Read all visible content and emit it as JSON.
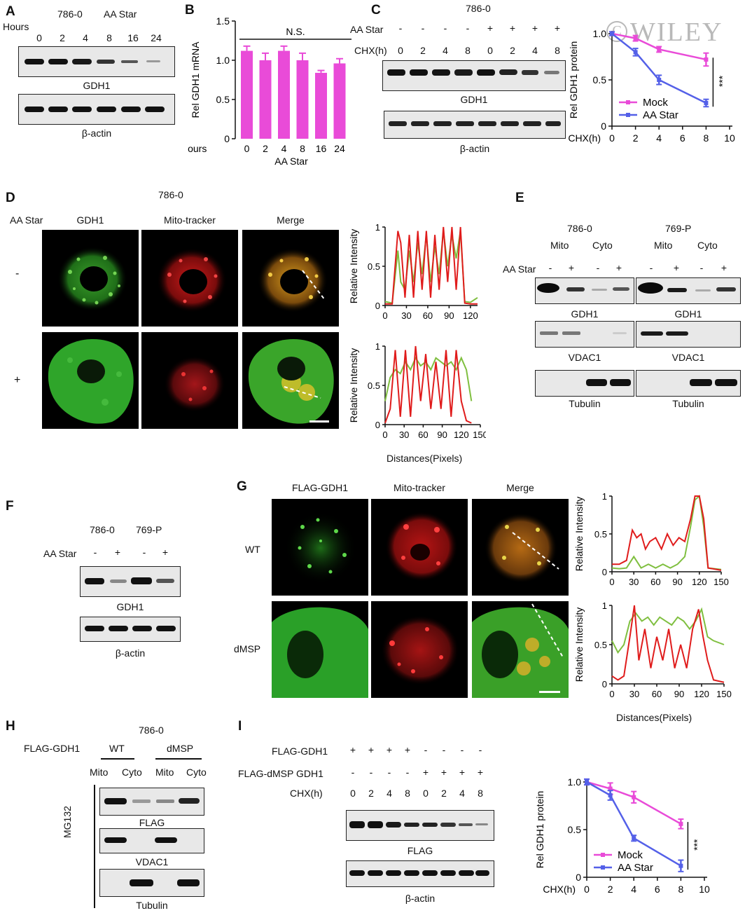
{
  "watermark": "WILEY",
  "panels": {
    "A": {
      "letter": "A",
      "cell": "786-0",
      "treatment": "AA Star",
      "hours_label": "Hours",
      "hours": [
        "0",
        "2",
        "4",
        "8",
        "16",
        "24"
      ],
      "blot1": "GDH1",
      "blot2": "β-actin"
    },
    "B": {
      "letter": "B",
      "ns": "N.S.",
      "xlabel": "AA Star",
      "x_prefix": "Hours"
    },
    "C": {
      "letter": "C",
      "cell": "786-0",
      "aa_label": "AA Star",
      "chx_label": "CHX(h)",
      "aa_signs": [
        "-",
        "-",
        "-",
        "-",
        "+",
        "+",
        "+",
        "+"
      ],
      "chx": [
        "0",
        "2",
        "4",
        "8",
        "0",
        "2",
        "4",
        "8"
      ],
      "blot1": "GDH1",
      "blot2": "β-actin",
      "sig": "***"
    },
    "D": {
      "letter": "D",
      "cell": "786-0",
      "aa_label": "AA Star",
      "cols": [
        "GDH1",
        "Mito-tracker",
        "Merge"
      ],
      "rows": [
        "-",
        "+"
      ],
      "ylabel": "Relative Intensity",
      "xlabel": "Distances(Pixels)"
    },
    "E": {
      "letter": "E",
      "cells": [
        "786-0",
        "769-P"
      ],
      "fractions": [
        "Mito",
        "Cyto",
        "Mito",
        "Cyto"
      ],
      "aa_label": "AA Star",
      "signs": [
        "-",
        "+",
        "-",
        "+",
        "-",
        "+",
        "-",
        "+"
      ],
      "blots": [
        "GDH1",
        "VDAC1",
        "Tubulin"
      ]
    },
    "F": {
      "letter": "F",
      "cells": [
        "786-0",
        "769-P"
      ],
      "aa_label": "AA Star",
      "signs": [
        "-",
        "+",
        "-",
        "+"
      ],
      "blot1": "GDH1",
      "blot2": "β-actin"
    },
    "G": {
      "letter": "G",
      "cols": [
        "FLAG-GDH1",
        "Mito-tracker",
        "Merge"
      ],
      "rows": [
        "WT",
        "dMSP"
      ],
      "ylabel": "Relative Intensity",
      "xlabel": "Distances(Pixels)"
    },
    "H": {
      "letter": "H",
      "cell": "786-0",
      "flag_label": "FLAG-GDH1",
      "groups": [
        "WT",
        "dMSP"
      ],
      "fractions": [
        "Mito",
        "Cyto",
        "Mito",
        "Cyto"
      ],
      "side": "MG132",
      "blots": [
        "FLAG",
        "VDAC1",
        "Tubulin"
      ]
    },
    "I": {
      "letter": "I",
      "row1_label": "FLAG-GDH1",
      "row2_label": "FLAG-dMSP GDH1",
      "chx_label": "CHX(h)",
      "row1_signs": [
        "+",
        "+",
        "+",
        "+",
        "-",
        "-",
        "-",
        "-"
      ],
      "row2_signs": [
        "-",
        "-",
        "-",
        "-",
        "+",
        "+",
        "+",
        "+"
      ],
      "chx": [
        "0",
        "2",
        "4",
        "8",
        "0",
        "2",
        "4",
        "8"
      ],
      "blot1": "FLAG",
      "blot2": "β-actin",
      "sig": "***"
    }
  },
  "chart_data": [
    {
      "id": "B",
      "type": "bar",
      "categories": [
        "0",
        "2",
        "4",
        "8",
        "16",
        "24"
      ],
      "values": [
        1.12,
        1.0,
        1.12,
        1.0,
        0.84,
        0.96
      ],
      "errors": [
        0.06,
        0.09,
        0.06,
        0.09,
        0.03,
        0.06
      ],
      "ylabel": "Rel GDH1 mRNA",
      "xlabel": "AA Star",
      "ylim": [
        0,
        1.5
      ],
      "yticks": [
        "0",
        "0.5",
        "1.0",
        "1.5"
      ],
      "color": "#e94bd8"
    },
    {
      "id": "C",
      "type": "line",
      "x": [
        0,
        2,
        4,
        8
      ],
      "series": [
        {
          "name": "Mock",
          "values": [
            1.0,
            0.95,
            0.83,
            0.72
          ],
          "errors": [
            0.02,
            0.03,
            0.03,
            0.07
          ],
          "color": "#e94bd8"
        },
        {
          "name": "AA Star",
          "values": [
            1.0,
            0.8,
            0.5,
            0.25
          ],
          "errors": [
            0.02,
            0.04,
            0.05,
            0.04
          ],
          "color": "#5460e8"
        }
      ],
      "xlabel": "CHX(h)",
      "ylabel": "Rel GDH1 protein",
      "xlim": [
        0,
        10
      ],
      "xticks": [
        "0",
        "2",
        "4",
        "6",
        "8",
        "10"
      ],
      "ylim": [
        0,
        1.0
      ],
      "yticks": [
        "0",
        "0.5",
        "1.0"
      ],
      "legend": "bottom-left",
      "sig": "***"
    },
    {
      "id": "I",
      "type": "line",
      "x": [
        0,
        2,
        4,
        8
      ],
      "series": [
        {
          "name": "Mock",
          "values": [
            1.0,
            0.93,
            0.84,
            0.56
          ],
          "errors": [
            0.03,
            0.06,
            0.06,
            0.05
          ],
          "color": "#e94bd8"
        },
        {
          "name": "AA Star",
          "values": [
            1.0,
            0.86,
            0.41,
            0.12
          ],
          "errors": [
            0.03,
            0.05,
            0.03,
            0.06
          ],
          "color": "#5460e8"
        }
      ],
      "xlabel": "CHX(h)",
      "ylabel": "Rel GDH1 protein",
      "xlim": [
        0,
        10
      ],
      "xticks": [
        "0",
        "2",
        "4",
        "6",
        "8",
        "10"
      ],
      "ylim": [
        0,
        1.0
      ],
      "yticks": [
        "0",
        "0.5",
        "1.0"
      ],
      "legend": "bottom-left",
      "sig": "***"
    },
    {
      "id": "D-minus",
      "type": "line",
      "xlim": [
        0,
        130
      ],
      "xticks": [
        "0",
        "30",
        "60",
        "90",
        "120"
      ],
      "ylim": [
        0,
        1
      ],
      "yticks": [
        "0",
        "0.5",
        "1"
      ],
      "series": [
        {
          "name": "",
          "color": "#7fbf3f",
          "x": [
            0,
            10,
            18,
            22,
            28,
            34,
            40,
            46,
            52,
            58,
            64,
            70,
            76,
            82,
            88,
            94,
            100,
            106,
            112,
            120,
            130
          ],
          "values": [
            0.05,
            0.03,
            0.7,
            0.3,
            0.2,
            0.7,
            0.3,
            0.8,
            0.4,
            0.9,
            0.3,
            0.75,
            0.4,
            0.95,
            0.5,
            0.9,
            0.6,
            0.95,
            0.05,
            0.04,
            0.1
          ]
        },
        {
          "name": "",
          "color": "#e01c1c",
          "x": [
            0,
            10,
            18,
            22,
            28,
            34,
            40,
            46,
            52,
            58,
            64,
            70,
            76,
            82,
            88,
            94,
            100,
            106,
            112,
            120,
            130
          ],
          "values": [
            0.02,
            0.02,
            0.95,
            0.8,
            0.1,
            0.9,
            0.1,
            0.95,
            0.2,
            0.95,
            0.1,
            0.9,
            0.2,
            1.0,
            0.3,
            1.0,
            0.2,
            1.0,
            0.03,
            0.02,
            0.02
          ]
        }
      ]
    },
    {
      "id": "D-plus",
      "type": "line",
      "xlim": [
        0,
        150
      ],
      "xticks": [
        "0",
        "30",
        "60",
        "90",
        "120",
        "150"
      ],
      "ylim": [
        0,
        1
      ],
      "yticks": [
        "0",
        "0.5",
        "1"
      ],
      "series": [
        {
          "name": "",
          "color": "#7fbf3f",
          "x": [
            0,
            8,
            16,
            24,
            32,
            40,
            48,
            56,
            64,
            72,
            80,
            88,
            96,
            104,
            112,
            120,
            128,
            136
          ],
          "values": [
            0.3,
            0.6,
            0.7,
            0.65,
            0.8,
            0.7,
            0.85,
            0.75,
            0.8,
            0.7,
            0.85,
            0.8,
            0.75,
            0.8,
            0.7,
            0.85,
            0.7,
            0.3
          ]
        },
        {
          "name": "",
          "color": "#e01c1c",
          "x": [
            0,
            8,
            16,
            24,
            32,
            40,
            48,
            56,
            64,
            72,
            80,
            88,
            96,
            104,
            112,
            120,
            128,
            136
          ],
          "values": [
            0.02,
            0.2,
            0.95,
            0.1,
            0.95,
            0.1,
            1.0,
            0.3,
            0.9,
            0.2,
            0.8,
            0.2,
            0.95,
            0.1,
            0.95,
            0.3,
            0.05,
            0.02
          ]
        }
      ]
    },
    {
      "id": "G-WT",
      "type": "line",
      "xlim": [
        0,
        150
      ],
      "xticks": [
        "0",
        "30",
        "60",
        "90",
        "120",
        "150"
      ],
      "ylim": [
        0,
        1
      ],
      "yticks": [
        "0",
        "0.5",
        "1"
      ],
      "series": [
        {
          "name": "",
          "color": "#7fbf3f",
          "x": [
            0,
            10,
            20,
            30,
            40,
            50,
            60,
            70,
            80,
            90,
            100,
            108,
            114,
            120,
            126,
            132,
            150
          ],
          "values": [
            0.05,
            0.04,
            0.05,
            0.2,
            0.05,
            0.1,
            0.05,
            0.1,
            0.05,
            0.1,
            0.2,
            0.6,
            0.95,
            1.0,
            0.6,
            0.05,
            0.03
          ]
        },
        {
          "name": "",
          "color": "#e01c1c",
          "x": [
            0,
            10,
            20,
            28,
            34,
            40,
            46,
            52,
            60,
            68,
            76,
            84,
            92,
            100,
            108,
            114,
            120,
            126,
            132,
            150
          ],
          "values": [
            0.1,
            0.1,
            0.15,
            0.55,
            0.45,
            0.5,
            0.3,
            0.4,
            0.45,
            0.3,
            0.5,
            0.35,
            0.45,
            0.4,
            0.7,
            1.0,
            1.0,
            0.7,
            0.05,
            0.02
          ]
        }
      ]
    },
    {
      "id": "G-dMSP",
      "type": "line",
      "xlim": [
        0,
        150
      ],
      "xticks": [
        "0",
        "30",
        "60",
        "90",
        "120",
        "150"
      ],
      "ylim": [
        0,
        1
      ],
      "yticks": [
        "0",
        "0.5",
        "1"
      ],
      "series": [
        {
          "name": "",
          "color": "#7fbf3f",
          "x": [
            0,
            8,
            16,
            24,
            32,
            40,
            48,
            56,
            64,
            72,
            80,
            88,
            96,
            104,
            112,
            120,
            128,
            136,
            150
          ],
          "values": [
            0.55,
            0.4,
            0.5,
            0.8,
            0.9,
            0.8,
            0.85,
            0.75,
            0.85,
            0.8,
            0.75,
            0.85,
            0.8,
            0.7,
            0.8,
            0.95,
            0.6,
            0.55,
            0.5
          ]
        },
        {
          "name": "",
          "color": "#e01c1c",
          "x": [
            0,
            8,
            16,
            24,
            30,
            36,
            44,
            52,
            60,
            68,
            76,
            84,
            92,
            100,
            108,
            116,
            122,
            128,
            136,
            150
          ],
          "values": [
            0.1,
            0.05,
            0.1,
            0.6,
            1.0,
            0.3,
            0.7,
            0.2,
            0.6,
            0.3,
            0.7,
            0.2,
            0.5,
            0.2,
            0.7,
            0.95,
            0.6,
            0.3,
            0.05,
            0.02
          ]
        }
      ]
    }
  ]
}
